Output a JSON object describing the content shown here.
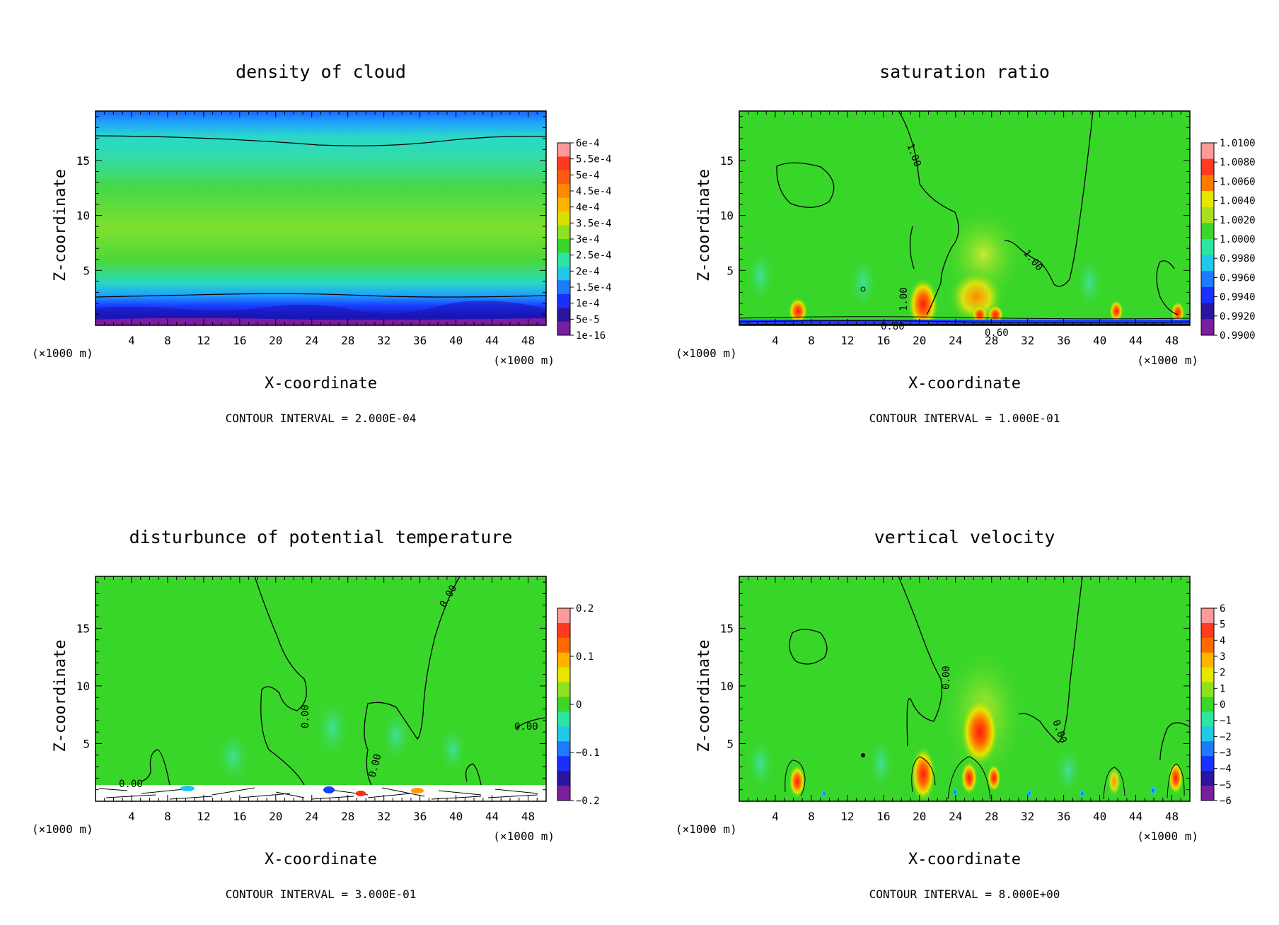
{
  "charts": [
    {
      "title": "density of cloud",
      "xlabel": "X-coordinate",
      "ylabel": "Z-coordinate",
      "x_unit_left": "(×1000 m)",
      "x_unit_right": "(×1000 m)",
      "contour_interval": "CONTOUR INTERVAL = 2.000E-04",
      "colorbar_labels": [
        "6e-4",
        "5.5e-4",
        "5e-4",
        "4.5e-4",
        "4e-4",
        "3.5e-4",
        "3e-4",
        "2.5e-4",
        "2e-4",
        "1.5e-4",
        "1e-4",
        "5e-5",
        "1e-16"
      ],
      "contour_labels": []
    },
    {
      "title": "saturation ratio",
      "xlabel": "X-coordinate",
      "ylabel": "Z-coordinate",
      "x_unit_left": "(×1000 m)",
      "x_unit_right": "(×1000 m)",
      "contour_interval": "CONTOUR INTERVAL = 1.000E-01",
      "colorbar_labels": [
        "1.0100",
        "1.0080",
        "1.0060",
        "1.0040",
        "1.0020",
        "1.0000",
        "0.9980",
        "0.9960",
        "0.9940",
        "0.9920",
        "0.9900"
      ],
      "contour_labels": [
        "1.00",
        "1.00",
        "1.00",
        "0.80",
        "0.60"
      ]
    },
    {
      "title": "disturbunce of potential temperature",
      "xlabel": "X-coordinate",
      "ylabel": "Z-coordinate",
      "x_unit_left": "(×1000 m)",
      "x_unit_right": "(×1000 m)",
      "contour_interval": "CONTOUR INTERVAL = 3.000E-01",
      "colorbar_labels": [
        "0.2",
        "0.1",
        "0",
        "−0.1",
        "−0.2"
      ],
      "contour_labels": [
        "0.00",
        "0.00",
        "0.00",
        "0.00",
        "0.00"
      ]
    },
    {
      "title": "vertical velocity",
      "xlabel": "X-coordinate",
      "ylabel": "Z-coordinate",
      "x_unit_left": "(×1000 m)",
      "x_unit_right": "(×1000 m)",
      "contour_interval": "CONTOUR INTERVAL = 8.000E+00",
      "colorbar_labels": [
        "6",
        "5",
        "4",
        "3",
        "2",
        "1",
        "0",
        "−1",
        "−2",
        "−3",
        "−4",
        "−5",
        "−6"
      ],
      "contour_labels": [
        "0.00",
        "0.00"
      ]
    }
  ],
  "chart_data": [
    {
      "type": "heatmap",
      "title": "density of cloud",
      "xlabel": "X-coordinate",
      "ylabel": "Z-coordinate",
      "xlim": [
        0,
        50
      ],
      "ylim": [
        0,
        19.5
      ],
      "x_ticks": [
        4,
        8,
        12,
        16,
        20,
        24,
        28,
        32,
        36,
        40,
        44,
        48
      ],
      "y_ticks": [
        5,
        10,
        15
      ],
      "colorbar": [
        "6e-4",
        "5.5e-4",
        "5e-4",
        "4.5e-4",
        "4e-4",
        "3.5e-4",
        "3e-4",
        "2.5e-4",
        "2e-4",
        "1.5e-4",
        "1e-4",
        "5e-5",
        "1e-16"
      ]
    },
    {
      "type": "heatmap",
      "title": "saturation ratio",
      "xlabel": "X-coordinate",
      "ylabel": "Z-coordinate",
      "xlim": [
        0,
        50
      ],
      "ylim": [
        0,
        19.5
      ],
      "x_ticks": [
        4,
        8,
        12,
        16,
        20,
        24,
        28,
        32,
        36,
        40,
        44,
        48
      ],
      "y_ticks": [
        5,
        10,
        15
      ],
      "colorbar": [
        "1.0100",
        "1.0080",
        "1.0060",
        "1.0040",
        "1.0020",
        "1.0000",
        "0.9980",
        "0.9960",
        "0.9940",
        "0.9920",
        "0.9900"
      ]
    },
    {
      "type": "heatmap",
      "title": "disturbunce of potential temperature",
      "xlabel": "X-coordinate",
      "ylabel": "Z-coordinate",
      "xlim": [
        0,
        50
      ],
      "ylim": [
        0,
        19.5
      ],
      "x_ticks": [
        4,
        8,
        12,
        16,
        20,
        24,
        28,
        32,
        36,
        40,
        44,
        48
      ],
      "y_ticks": [
        5,
        10,
        15
      ],
      "colorbar": [
        "0.2",
        "0.1",
        "0",
        "−0.1",
        "−0.2"
      ]
    },
    {
      "type": "heatmap",
      "title": "vertical velocity",
      "xlabel": "X-coordinate",
      "ylabel": "Z-coordinate",
      "xlim": [
        0,
        50
      ],
      "ylim": [
        0,
        19.5
      ],
      "x_ticks": [
        4,
        8,
        12,
        16,
        20,
        24,
        28,
        32,
        36,
        40,
        44,
        48
      ],
      "y_ticks": [
        5,
        10,
        15
      ],
      "colorbar": [
        "6",
        "5",
        "4",
        "3",
        "2",
        "1",
        "0",
        "−1",
        "−2",
        "−3",
        "−4",
        "−5",
        "−6"
      ]
    }
  ],
  "colors": {
    "field_green": "#39d62a",
    "cyan": "#33e6c8",
    "blue": "#1e64ff",
    "navy": "#1a1ab4",
    "purple": "#7a1ea0",
    "yellow": "#e6e600",
    "orange": "#ff9a00",
    "red": "#ff2a10",
    "pink": "#ffa0a0"
  }
}
